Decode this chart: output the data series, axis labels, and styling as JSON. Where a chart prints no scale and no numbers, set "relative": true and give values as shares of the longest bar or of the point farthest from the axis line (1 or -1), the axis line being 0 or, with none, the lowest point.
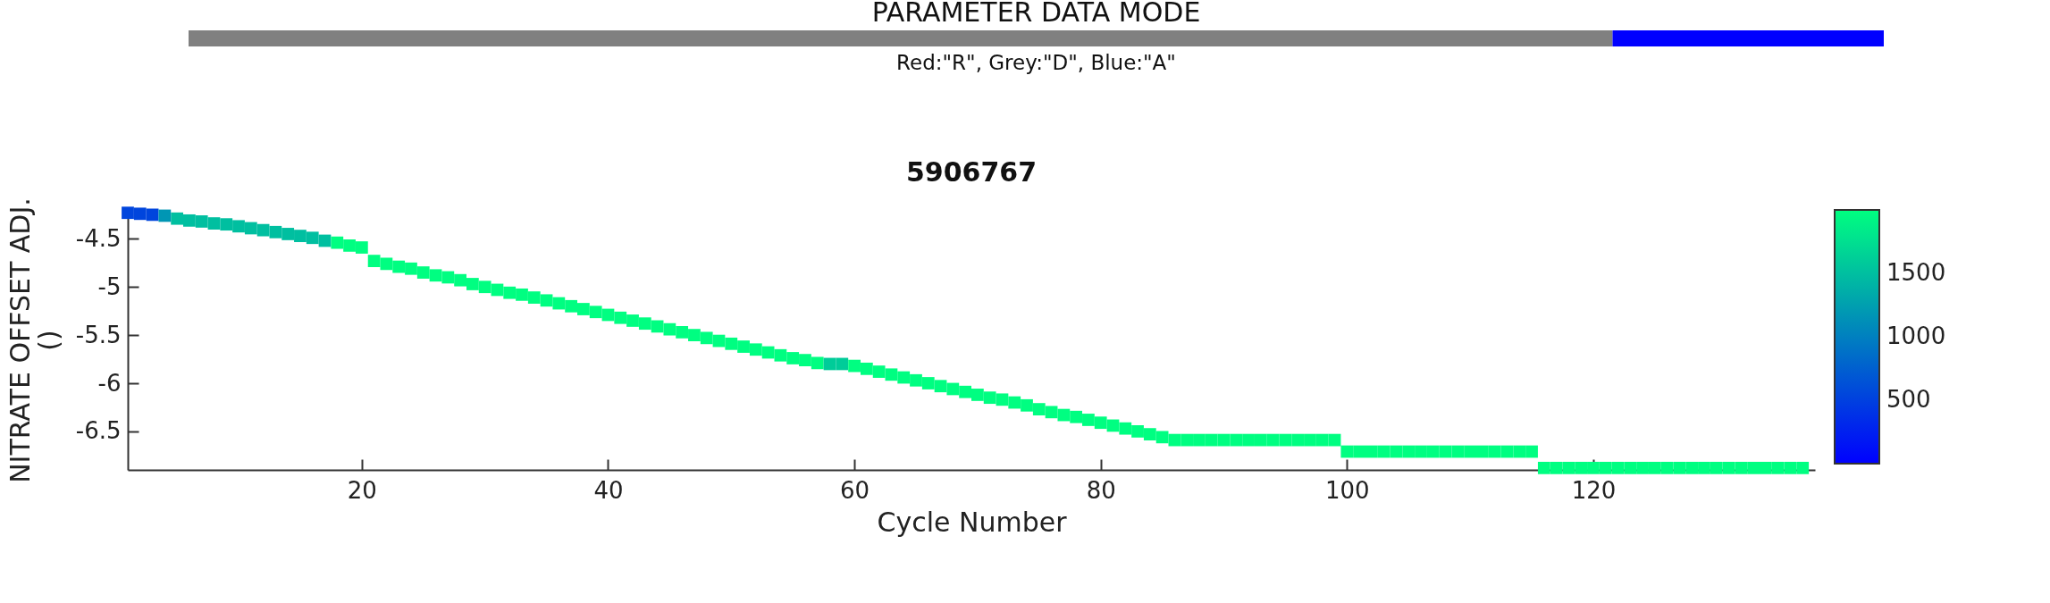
{
  "chart_data": [
    {
      "type": "bar",
      "title": "PARAMETER DATA MODE",
      "annotations": [
        "Red:\"R\", Grey:\"D\", Blue:\"A\""
      ],
      "orientation": "horizontal",
      "stacked": true,
      "relative": true,
      "categories": [
        null
      ],
      "series": [
        {
          "color": "#808080",
          "values": [
            0.84
          ]
        },
        {
          "color": "#0000ff",
          "values": [
            0.16
          ]
        }
      ]
    },
    {
      "type": "scatter",
      "title": "5906767",
      "xlabel": "Cycle Number",
      "ylabel": "NITRATE OFFSET ADJ. ()",
      "marker": "square",
      "xlim": [
        1,
        138
      ],
      "xticks": [
        20,
        40,
        60,
        80,
        100,
        120
      ],
      "ylim": [
        -6.9,
        -4.2
      ],
      "yticks": [
        -6.5,
        -6,
        -5.5,
        -5,
        -4.5
      ],
      "clim": [
        0,
        2000
      ],
      "cticks": [
        500,
        1000,
        1500
      ],
      "x": [
        1,
        2,
        3,
        4,
        5,
        6,
        7,
        8,
        9,
        10,
        11,
        12,
        13,
        14,
        15,
        16,
        17,
        18,
        19,
        20,
        21,
        22,
        23,
        24,
        25,
        26,
        27,
        28,
        29,
        30,
        31,
        32,
        33,
        34,
        35,
        36,
        37,
        38,
        39,
        40,
        41,
        42,
        43,
        44,
        45,
        46,
        47,
        48,
        49,
        50,
        51,
        52,
        53,
        54,
        55,
        56,
        57,
        58,
        59,
        60,
        61,
        62,
        63,
        64,
        65,
        66,
        67,
        68,
        69,
        70,
        71,
        72,
        73,
        74,
        75,
        76,
        77,
        78,
        79,
        80,
        81,
        82,
        83,
        84,
        85,
        86,
        87,
        88,
        89,
        90,
        91,
        92,
        93,
        94,
        95,
        96,
        97,
        98,
        99,
        100,
        101,
        102,
        103,
        104,
        105,
        106,
        107,
        108,
        109,
        110,
        111,
        112,
        113,
        114,
        115,
        116,
        117,
        118,
        119,
        120,
        121,
        122,
        123,
        124,
        125,
        126,
        127,
        128,
        129,
        130,
        131,
        132,
        133,
        134,
        135,
        136,
        137
      ],
      "values": [
        -4.23,
        -4.24,
        -4.25,
        -4.26,
        -4.29,
        -4.31,
        -4.32,
        -4.34,
        -4.35,
        -4.37,
        -4.39,
        -4.41,
        -4.43,
        -4.45,
        -4.47,
        -4.49,
        -4.52,
        -4.54,
        -4.57,
        -4.59,
        -4.73,
        -4.76,
        -4.79,
        -4.81,
        -4.85,
        -4.88,
        -4.9,
        -4.93,
        -4.97,
        -5.0,
        -5.03,
        -5.06,
        -5.08,
        -5.11,
        -5.14,
        -5.17,
        -5.2,
        -5.23,
        -5.26,
        -5.29,
        -5.32,
        -5.35,
        -5.38,
        -5.41,
        -5.44,
        -5.47,
        -5.5,
        -5.53,
        -5.56,
        -5.59,
        -5.62,
        -5.65,
        -5.68,
        -5.71,
        -5.74,
        -5.76,
        -5.79,
        -5.8,
        -5.8,
        -5.82,
        -5.85,
        -5.88,
        -5.91,
        -5.94,
        -5.97,
        -6.0,
        -6.03,
        -6.06,
        -6.09,
        -6.12,
        -6.15,
        -6.17,
        -6.2,
        -6.23,
        -6.27,
        -6.3,
        -6.33,
        -6.35,
        -6.38,
        -6.41,
        -6.44,
        -6.47,
        -6.5,
        -6.53,
        -6.56,
        -6.59,
        -6.59,
        -6.59,
        -6.59,
        -6.59,
        -6.59,
        -6.59,
        -6.59,
        -6.59,
        -6.59,
        -6.59,
        -6.59,
        -6.59,
        -6.59,
        -6.71,
        -6.71,
        -6.71,
        -6.71,
        -6.71,
        -6.71,
        -6.71,
        -6.71,
        -6.71,
        -6.71,
        -6.71,
        -6.71,
        -6.71,
        -6.71,
        -6.71,
        -6.71,
        -6.88,
        -6.88,
        -6.88,
        -6.88,
        -6.88,
        -6.88,
        -6.88,
        -6.88,
        -6.88,
        -6.88,
        -6.88,
        -6.88,
        -6.88,
        -6.88,
        -6.88,
        -6.88,
        -6.88,
        -6.88,
        -6.88,
        -6.88,
        -6.88,
        -6.88
      ],
      "cvalues": [
        540,
        540,
        540,
        1180,
        1500,
        1500,
        1500,
        1500,
        1500,
        1500,
        1500,
        1500,
        1500,
        1500,
        1500,
        1500,
        1500,
        1990,
        1990,
        1990,
        1990,
        1990,
        1990,
        1990,
        1990,
        1990,
        1990,
        1990,
        1990,
        1990,
        1990,
        1990,
        1990,
        1990,
        1990,
        1990,
        1990,
        1990,
        1990,
        1990,
        1990,
        1990,
        1990,
        1990,
        1990,
        1990,
        1990,
        1990,
        1990,
        1990,
        1990,
        1990,
        1990,
        1990,
        1990,
        1990,
        1990,
        1600,
        1600,
        1990,
        1990,
        1990,
        1990,
        1990,
        1990,
        1990,
        1990,
        1990,
        1990,
        1990,
        1990,
        1990,
        1990,
        1990,
        1990,
        1990,
        1990,
        1990,
        1990,
        1990,
        1990,
        1990,
        1990,
        1990,
        1990,
        1990,
        1990,
        1990,
        1990,
        1990,
        1990,
        1990,
        1990,
        1990,
        1990,
        1990,
        1990,
        1990,
        1990,
        1990,
        1990,
        1990,
        1990,
        1990,
        1990,
        1990,
        1990,
        1990,
        1990,
        1990,
        1990,
        1990,
        1990,
        1990,
        1990,
        1990,
        1990,
        1990,
        1990,
        1990,
        1990,
        1990,
        1990,
        1990,
        1990,
        1990,
        1990,
        1990,
        1990,
        1990,
        1990,
        1990,
        1990,
        1990,
        1990,
        1990,
        1990
      ]
    }
  ]
}
